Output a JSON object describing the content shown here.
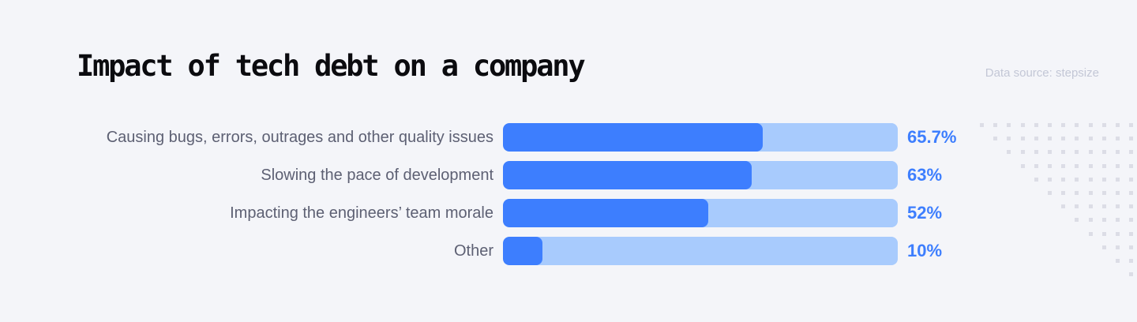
{
  "header": {
    "title": "Impact of tech debt on a company",
    "source": "Data source: stepsize"
  },
  "colors": {
    "background": "#f4f5f9",
    "bar_fill": "#3d7efe",
    "bar_track": "#a8cbfd",
    "value_text": "#3d7efe",
    "label_text": "#5d6073",
    "source_text": "#c3c7d6",
    "dot": "#dcdde6"
  },
  "rows": [
    {
      "label": "Causing bugs, errors, outrages and other quality issues",
      "value": 65.7,
      "value_label": "65.7%"
    },
    {
      "label": "Slowing the pace of development",
      "value": 63,
      "value_label": "63%"
    },
    {
      "label": "Impacting the engineers’ team morale",
      "value": 52,
      "value_label": "52%"
    },
    {
      "label": "Other",
      "value": 10,
      "value_label": "10%"
    }
  ],
  "chart_data": {
    "type": "bar",
    "orientation": "horizontal",
    "title": "Impact of tech debt on a company",
    "subtitle": "Data source: stepsize",
    "categories": [
      "Causing bugs, errors, outrages and other quality issues",
      "Slowing the pace of development",
      "Impacting the engineers’ team morale",
      "Other"
    ],
    "values": [
      65.7,
      63,
      52,
      10
    ],
    "value_labels": [
      "65.7%",
      "63%",
      "52%",
      "10%"
    ],
    "xlabel": "",
    "ylabel": "",
    "xlim": [
      0,
      100
    ],
    "grid": false,
    "legend": null
  }
}
